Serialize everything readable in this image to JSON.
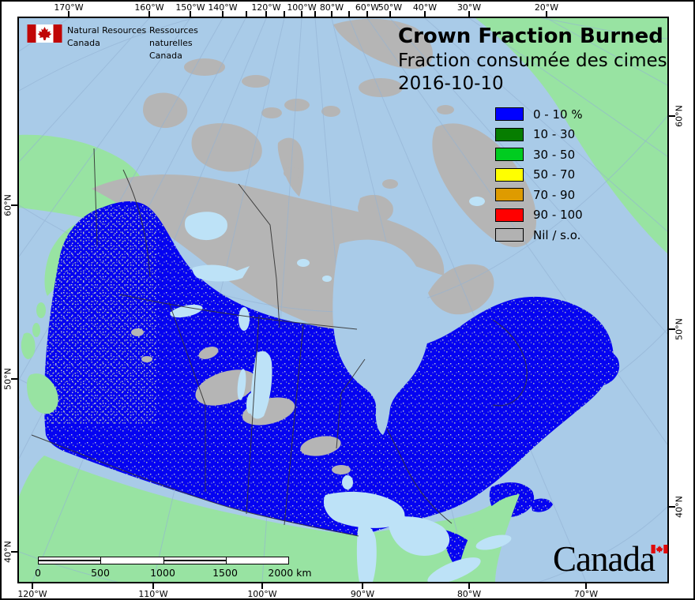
{
  "signature": {
    "en1": "Natural Resources",
    "en2": "Canada",
    "fr1": "Ressources naturelles",
    "fr2": "Canada"
  },
  "title": {
    "line1": "Crown Fraction Burned",
    "line2": "Fraction consumée des cimes",
    "date": "2016-10-10"
  },
  "legend": {
    "items": [
      {
        "label": "0 - 10 %",
        "color": "#0000FF"
      },
      {
        "label": "10 - 30",
        "color": "#067D00"
      },
      {
        "label": "30 - 50",
        "color": "#00CC20"
      },
      {
        "label": "50 - 70",
        "color": "#FFFF00"
      },
      {
        "label": "70 - 90",
        "color": "#DE9B00"
      },
      {
        "label": "90 - 100",
        "color": "#FF0000"
      },
      {
        "label": "Nil / s.o.",
        "color": "#B2B2B2"
      }
    ]
  },
  "axes": {
    "top": [
      "170°W",
      "160°W",
      "150°W",
      "140°W",
      "120°W",
      "100°W",
      "80°W",
      "60°W",
      "50°W",
      "40°W",
      "30°W",
      "20°W"
    ],
    "bottom": [
      "120°W",
      "110°W",
      "100°W",
      "90°W",
      "80°W",
      "70°W"
    ],
    "left": [
      "60°N",
      "50°N",
      "40°N"
    ],
    "right": [
      "60°N",
      "50°N",
      "40°N"
    ]
  },
  "scalebar": {
    "labels": [
      "0",
      "500",
      "1000",
      "1500",
      "2000 km"
    ]
  },
  "wordmark": {
    "text": "Canada"
  },
  "map": {
    "colors": {
      "ocean": "#A9CBE8",
      "land_green": "#98E3A2",
      "land_gray": "#B5B5B5",
      "data_blue": "#0503F1",
      "lake": "#BDE2F7",
      "graticule": "#93B2D3",
      "border": "#333333"
    }
  }
}
